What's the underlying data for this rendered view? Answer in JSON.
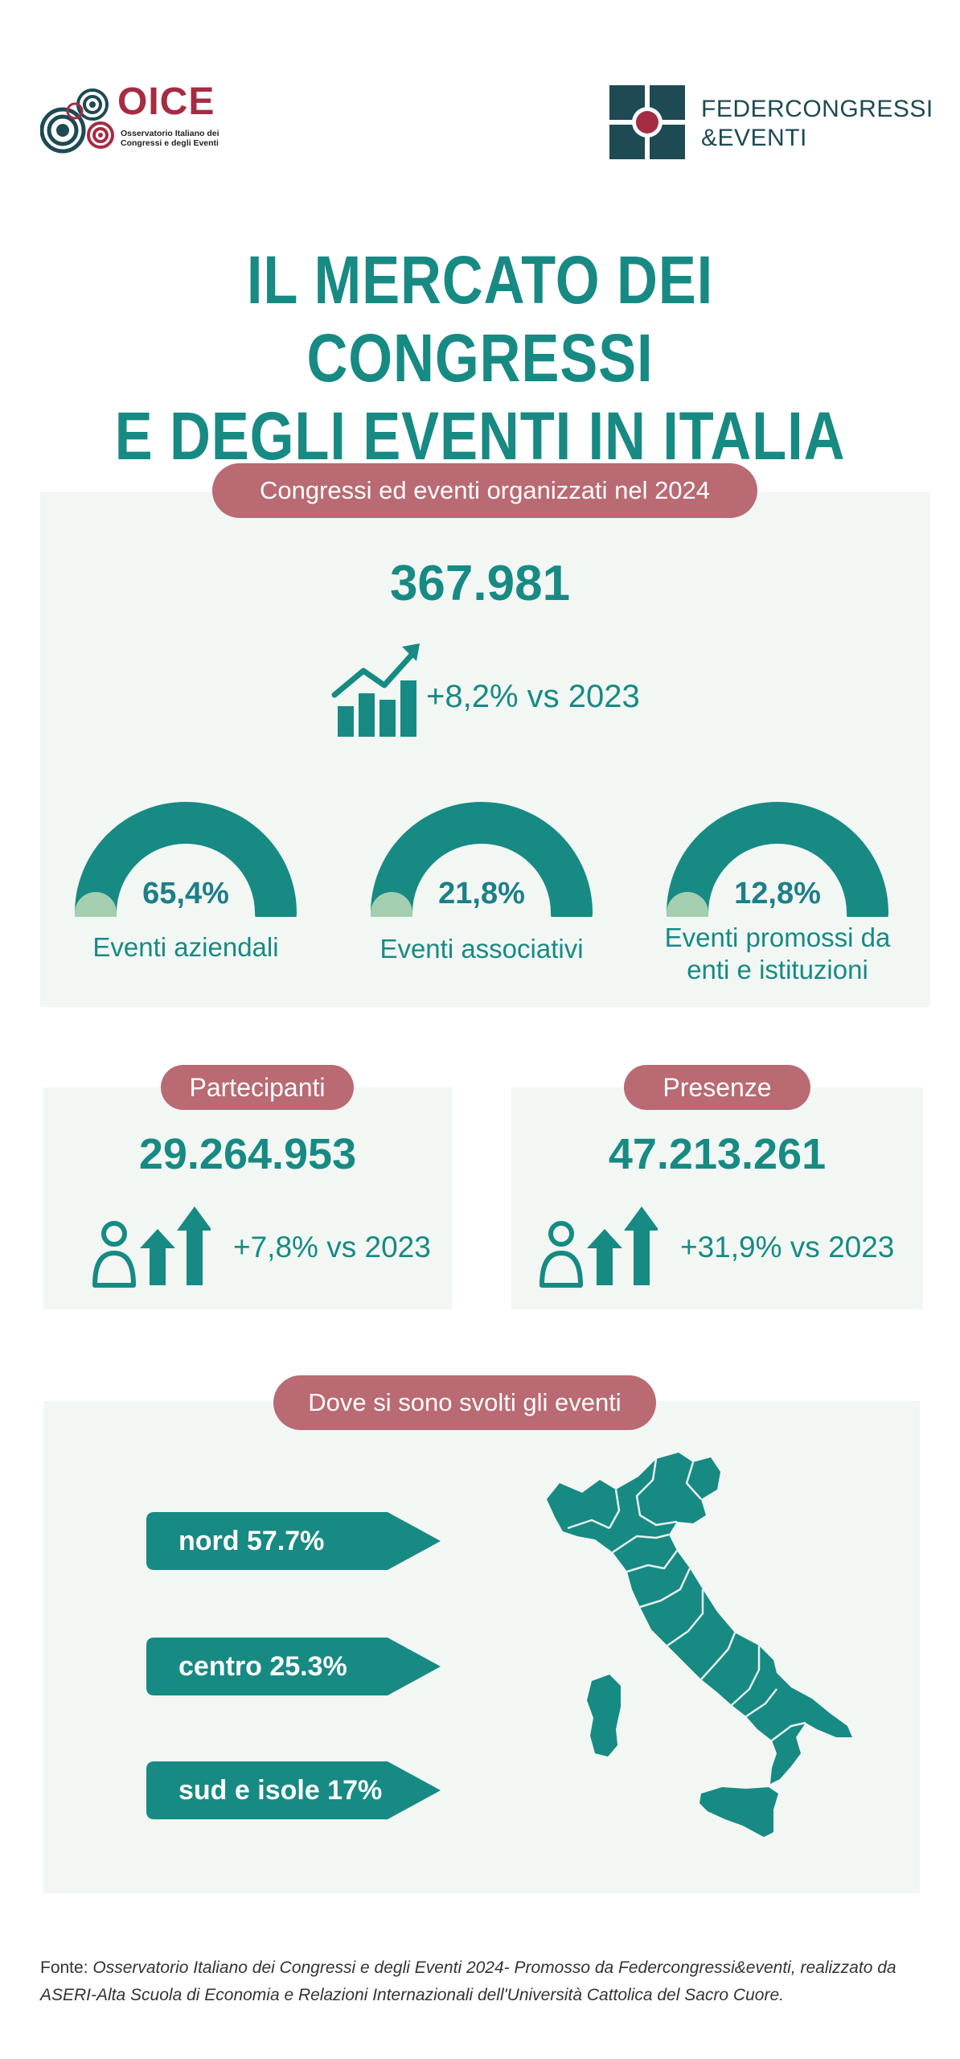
{
  "header": {
    "oice_title": "OICE",
    "oice_subtitle": "Osservatorio Italiano dei Congressi e degli Eventi",
    "fc_line1": "FEDERCONGRESSI",
    "fc_line2": "&EVENTI"
  },
  "title": {
    "line1": "IL MERCATO DEI CONGRESSI",
    "line2": "E DEGLI EVENTI IN ITALIA"
  },
  "events": {
    "pill": "Congressi ed eventi organizzati nel 2024",
    "total": "367.981",
    "growth": "+8,2% vs 2023",
    "breakdown": [
      {
        "pct_label": "65,4%",
        "value": 65.4,
        "label_line1": "Eventi aziendali",
        "label_line2": ""
      },
      {
        "pct_label": "21,8%",
        "value": 21.8,
        "label_line1": "Eventi associativi",
        "label_line2": ""
      },
      {
        "pct_label": "12,8%",
        "value": 12.8,
        "label_line1": "Eventi promossi da",
        "label_line2": "enti e istituzioni"
      }
    ]
  },
  "participants": {
    "pill": "Partecipanti",
    "value": "29.264.953",
    "delta": "+7,8% vs 2023"
  },
  "presences": {
    "pill": "Presenze",
    "value": "47.213.261",
    "delta": "+31,9% vs 2023"
  },
  "location": {
    "pill": "Dove si sono svolti gli eventi",
    "regions": [
      {
        "label": "nord 57.7%",
        "value": 57.7
      },
      {
        "label": "centro 25.3%",
        "value": 25.3
      },
      {
        "label": "sud e isole 17%",
        "value": 17
      }
    ]
  },
  "footnote": {
    "prefix": "Fonte: ",
    "text": "Osservatorio Italiano dei Congressi e degli Eventi 2024- Promosso da Federcongressi&eventi, realizzato da ASERI-Alta Scuola di Economia e Relazioni Internazionali dell'Università Cattolica del Sacro Cuore."
  },
  "colors": {
    "teal": "#178a83",
    "light_green": "#a3cfb0",
    "pill": "#b96a73",
    "panel_bg": "#f2f7f4",
    "brand_red": "#a52c43",
    "brand_dark": "#1d4a53"
  }
}
